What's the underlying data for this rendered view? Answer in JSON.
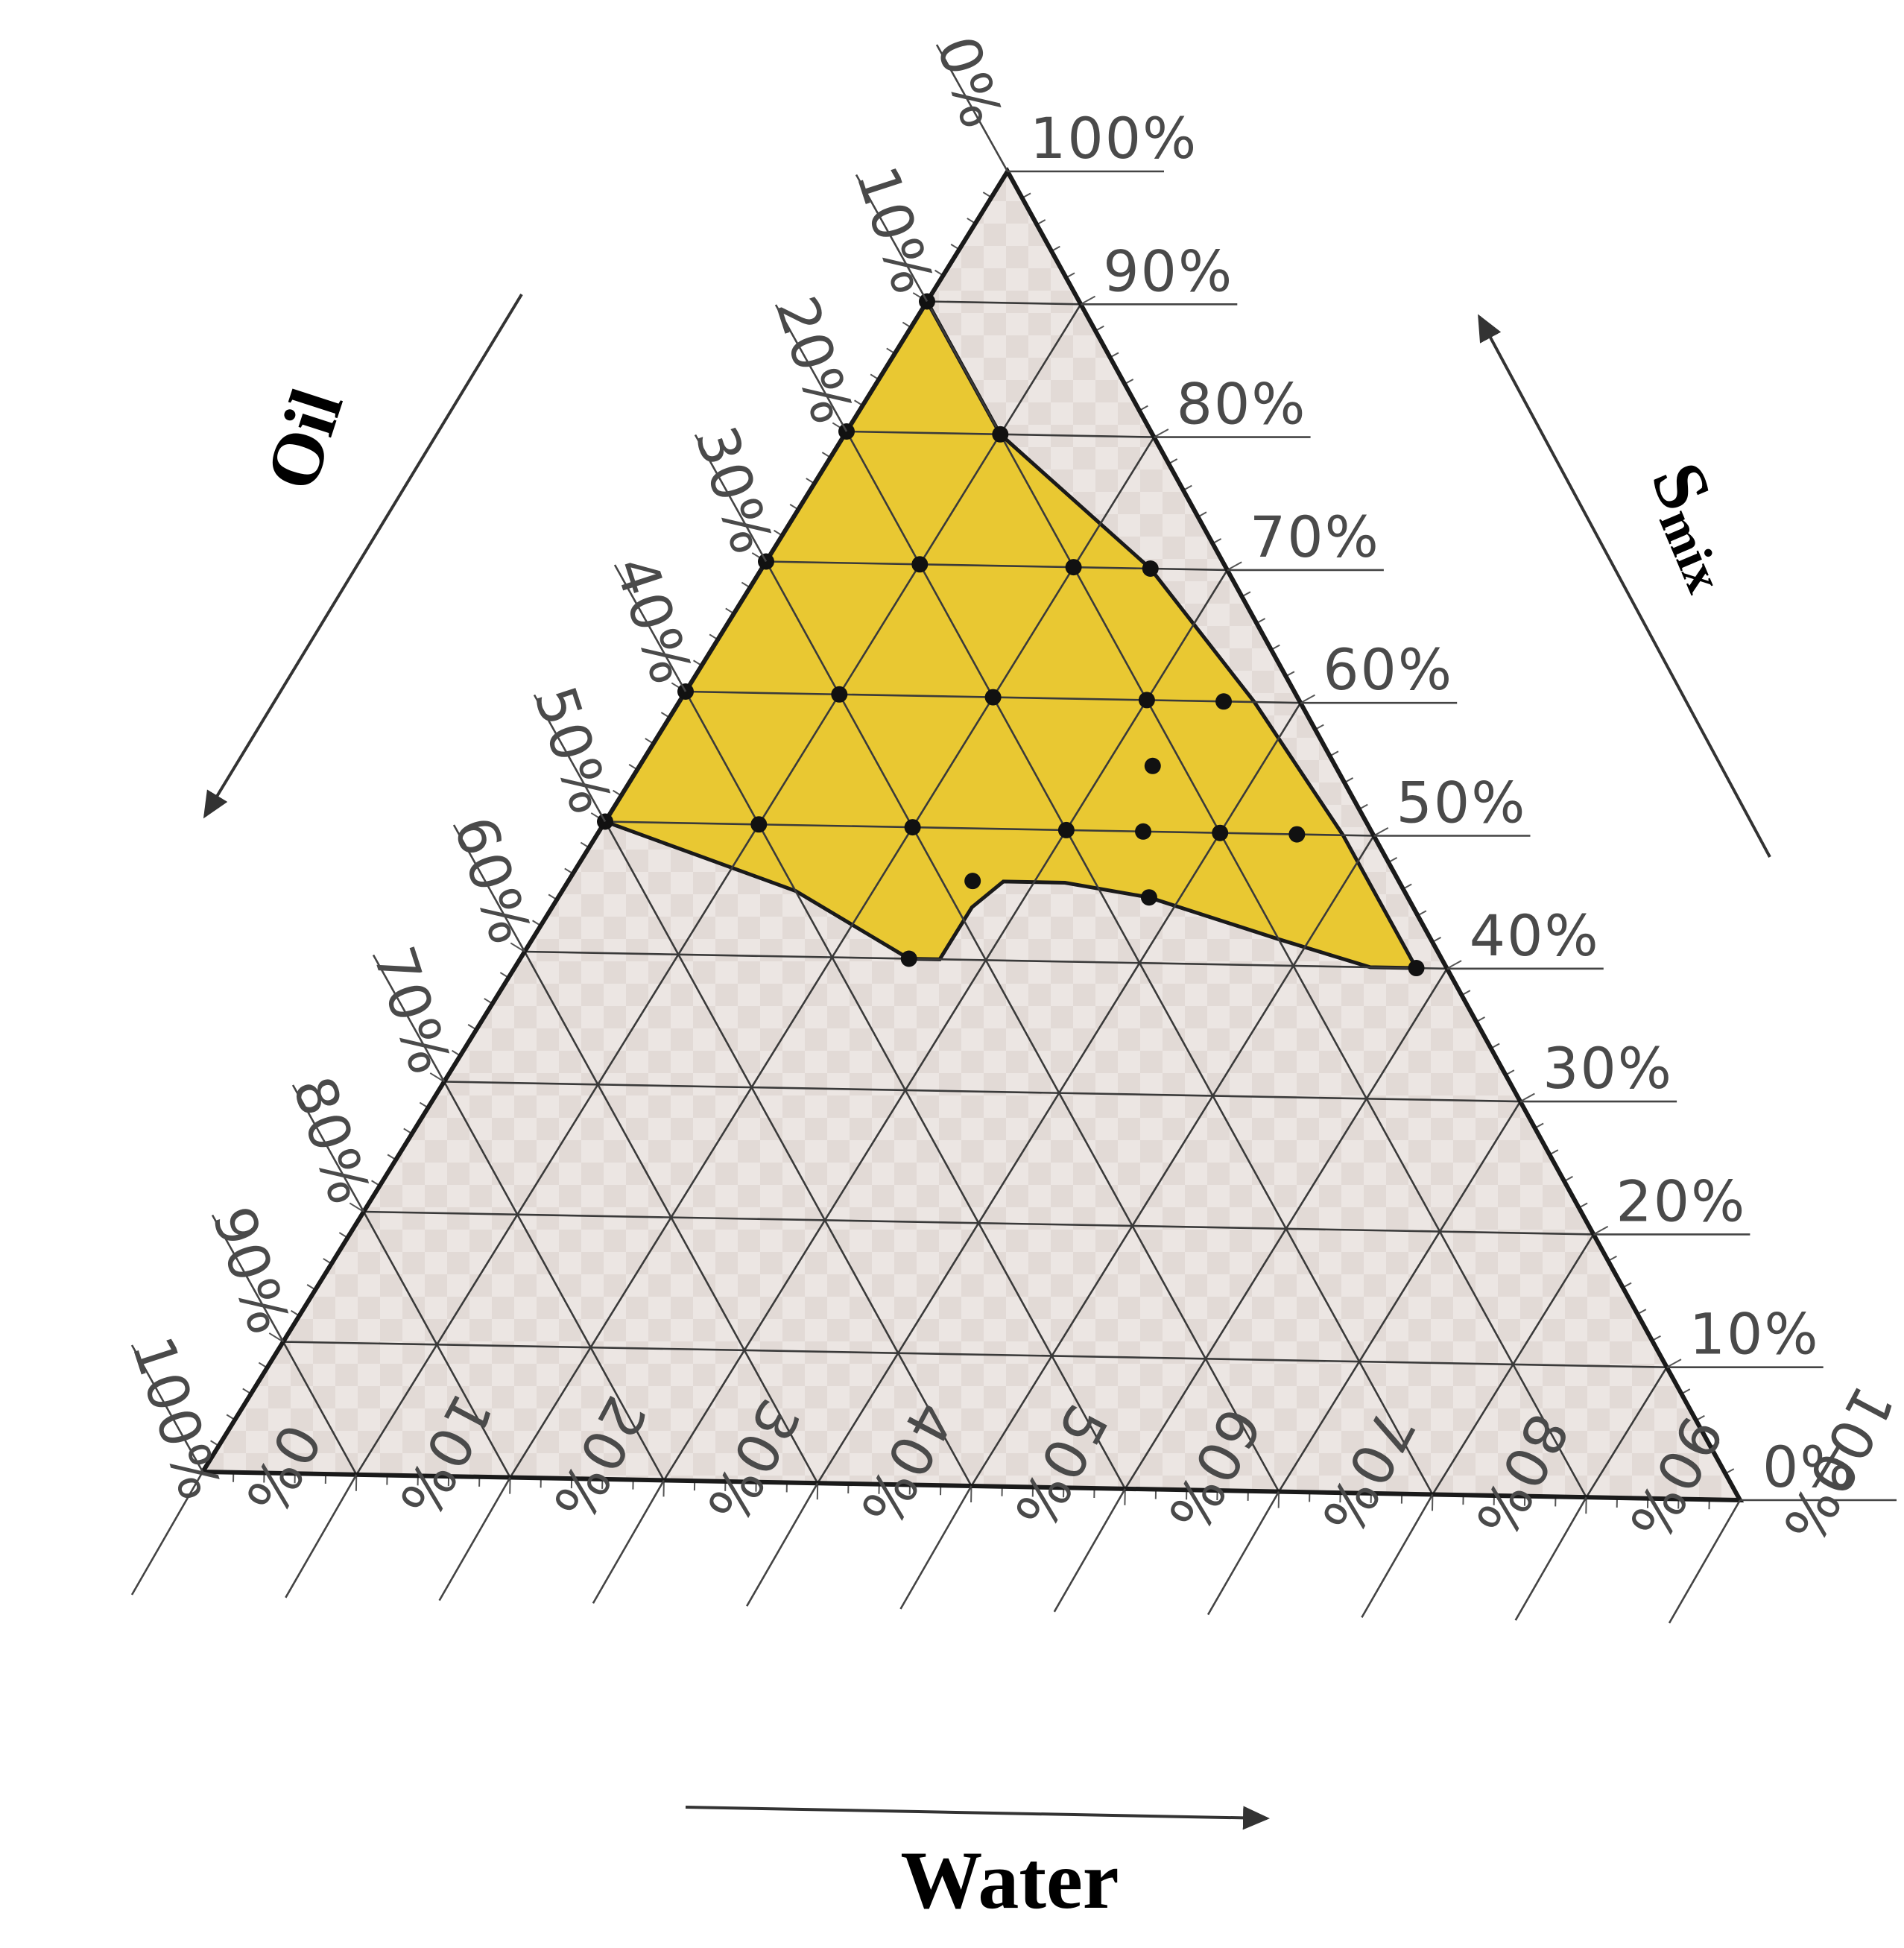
{
  "chart_data": {
    "type": "ternary",
    "axes": {
      "oil": {
        "label": "Oil",
        "ticks": [
          "0%",
          "10%",
          "20%",
          "30%",
          "40%",
          "50%",
          "60%",
          "70%",
          "80%",
          "90%",
          "100%"
        ]
      },
      "smix": {
        "label": "S",
        "label_sub": "mix",
        "ticks": [
          "100%",
          "90%",
          "80%",
          "70%",
          "60%",
          "50%",
          "40%",
          "30%",
          "20%",
          "10%",
          "0%"
        ]
      },
      "water": {
        "label": "Water",
        "ticks": [
          "0%",
          "10%",
          "20%",
          "30%",
          "40%",
          "50%",
          "60%",
          "70%",
          "80%",
          "90%",
          "100%"
        ]
      }
    },
    "grid": true,
    "grid_step": 10,
    "region": {
      "description_color": "#e9c832",
      "boundary_points": [
        {
          "smix": 90,
          "oil": 10,
          "water": 0
        },
        {
          "smix": 80,
          "oil": 10,
          "water": 10
        },
        {
          "smix": 70,
          "oil": 5,
          "water": 25
        },
        {
          "smix": 60,
          "oil": 3,
          "water": 37
        },
        {
          "smix": 50,
          "oil": 2,
          "water": 48
        },
        {
          "smix": 40,
          "oil": 2,
          "water": 58
        },
        {
          "smix": 40,
          "oil": 5,
          "water": 55
        },
        {
          "smix": 42,
          "oil": 10,
          "water": 48
        },
        {
          "smix": 45,
          "oil": 17,
          "water": 38
        },
        {
          "smix": 46,
          "oil": 22,
          "water": 32
        },
        {
          "smix": 46,
          "oil": 26,
          "water": 28
        },
        {
          "smix": 44,
          "oil": 29,
          "water": 27
        },
        {
          "smix": 40,
          "oil": 33,
          "water": 27
        },
        {
          "smix": 40,
          "oil": 35,
          "water": 25
        },
        {
          "smix": 45,
          "oil": 40,
          "water": 15
        },
        {
          "smix": 50,
          "oil": 50,
          "water": 0
        },
        {
          "smix": 60,
          "oil": 40,
          "water": 0
        },
        {
          "smix": 70,
          "oil": 30,
          "water": 0
        },
        {
          "smix": 80,
          "oil": 20,
          "water": 0
        }
      ]
    },
    "points": [
      {
        "smix": 90,
        "oil": 10,
        "water": 0
      },
      {
        "smix": 80,
        "oil": 20,
        "water": 0
      },
      {
        "smix": 70,
        "oil": 30,
        "water": 0
      },
      {
        "smix": 60,
        "oil": 40,
        "water": 0
      },
      {
        "smix": 50,
        "oil": 50,
        "water": 0
      },
      {
        "smix": 80,
        "oil": 10,
        "water": 10
      },
      {
        "smix": 70,
        "oil": 10,
        "water": 20
      },
      {
        "smix": 70,
        "oil": 5,
        "water": 25
      },
      {
        "smix": 70,
        "oil": 20,
        "water": 10
      },
      {
        "smix": 60,
        "oil": 10,
        "water": 30
      },
      {
        "smix": 60,
        "oil": 20,
        "water": 20
      },
      {
        "smix": 60,
        "oil": 30,
        "water": 10
      },
      {
        "smix": 60,
        "oil": 5,
        "water": 35
      },
      {
        "smix": 55,
        "oil": 12,
        "water": 33
      },
      {
        "smix": 50,
        "oil": 10,
        "water": 40
      },
      {
        "smix": 50,
        "oil": 15,
        "water": 35
      },
      {
        "smix": 50,
        "oil": 20,
        "water": 30
      },
      {
        "smix": 50,
        "oil": 30,
        "water": 20
      },
      {
        "smix": 50,
        "oil": 40,
        "water": 10
      },
      {
        "smix": 50,
        "oil": 5,
        "water": 45
      },
      {
        "smix": 40,
        "oil": 2,
        "water": 58
      },
      {
        "smix": 45,
        "oil": 17,
        "water": 38
      },
      {
        "smix": 46,
        "oil": 28,
        "water": 26
      },
      {
        "smix": 40,
        "oil": 35,
        "water": 25
      }
    ]
  }
}
